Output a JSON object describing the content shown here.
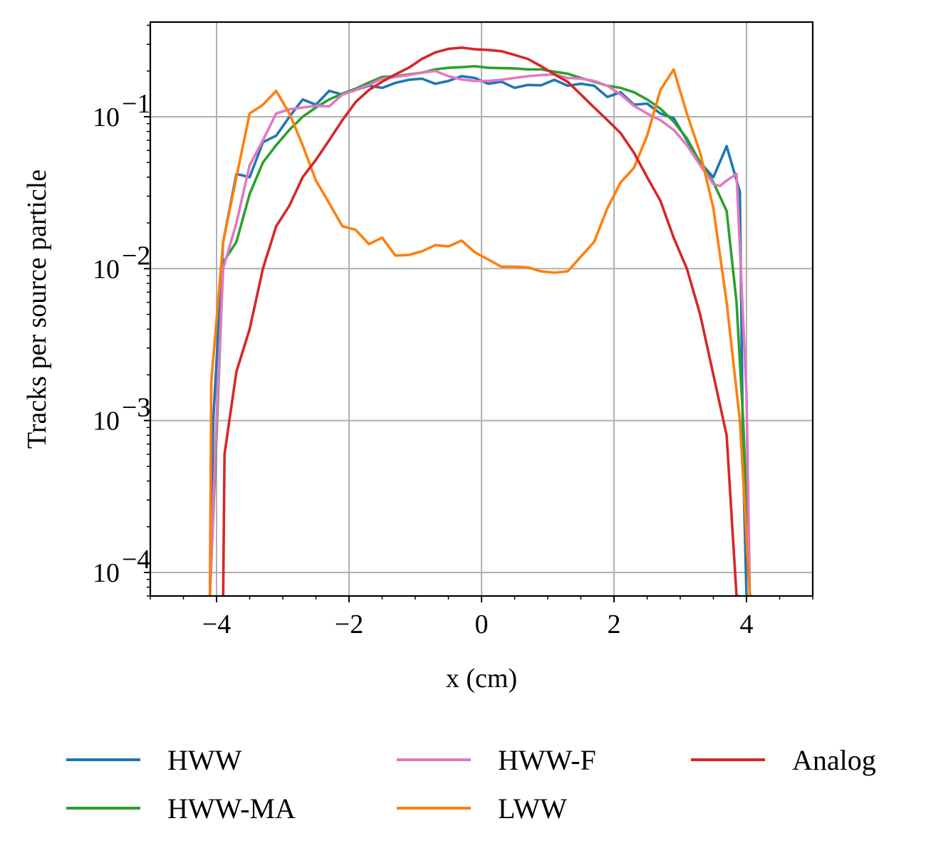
{
  "chart_data": {
    "type": "line",
    "title": "",
    "xlabel": "x (cm)",
    "ylabel": "Tracks per source particle",
    "yscale": "log",
    "xlim": [
      -5,
      5
    ],
    "ylim": [
      7e-05,
      0.42
    ],
    "grid": true,
    "legend_position": "bottom",
    "x_ticks": [
      -4,
      -2,
      0,
      2,
      4
    ],
    "x_tick_labels": [
      "−4",
      "−2",
      "0",
      "2",
      "4"
    ],
    "y_ticks": [
      0.0001,
      0.001,
      0.01,
      0.1
    ],
    "y_tick_labels": [
      {
        "base": "10",
        "exp": "−4"
      },
      {
        "base": "10",
        "exp": "−3"
      },
      {
        "base": "10",
        "exp": "−2"
      },
      {
        "base": "10",
        "exp": "−1"
      }
    ],
    "series": [
      {
        "name": "HWW",
        "color": "#1f77b4",
        "x": [
          -4.1,
          -4.05,
          -3.9,
          -3.7,
          -3.5,
          -3.3,
          -3.1,
          -2.9,
          -2.7,
          -2.5,
          -2.3,
          -2.1,
          -1.9,
          -1.7,
          -1.5,
          -1.3,
          -1.1,
          -0.9,
          -0.7,
          -0.5,
          -0.3,
          -0.1,
          0.1,
          0.3,
          0.5,
          0.7,
          0.9,
          1.1,
          1.3,
          1.5,
          1.7,
          1.9,
          2.1,
          2.3,
          2.5,
          2.7,
          2.9,
          3.1,
          3.3,
          3.5,
          3.7,
          3.9,
          3.95,
          4.0
        ],
        "y": [
          7e-05,
          0.001,
          0.015,
          0.042,
          0.04,
          0.068,
          0.075,
          0.1,
          0.13,
          0.12,
          0.148,
          0.14,
          0.15,
          0.16,
          0.155,
          0.167,
          0.175,
          0.178,
          0.165,
          0.172,
          0.185,
          0.18,
          0.165,
          0.17,
          0.155,
          0.162,
          0.161,
          0.175,
          0.16,
          0.165,
          0.16,
          0.135,
          0.145,
          0.12,
          0.122,
          0.105,
          0.098,
          0.07,
          0.05,
          0.04,
          0.064,
          0.032,
          0.0005,
          7e-05
        ]
      },
      {
        "name": "HWW-MA",
        "color": "#2ca02c",
        "x": [
          -4.1,
          -4.0,
          -3.9,
          -3.7,
          -3.5,
          -3.3,
          -3.1,
          -2.9,
          -2.7,
          -2.5,
          -2.3,
          -2.1,
          -1.9,
          -1.7,
          -1.5,
          -1.3,
          -1.1,
          -0.9,
          -0.7,
          -0.5,
          -0.3,
          -0.1,
          0.1,
          0.3,
          0.5,
          0.7,
          0.9,
          1.1,
          1.3,
          1.5,
          1.7,
          1.9,
          2.1,
          2.3,
          2.5,
          2.7,
          2.9,
          3.1,
          3.3,
          3.5,
          3.7,
          3.85,
          3.95,
          4.05
        ],
        "y": [
          7e-05,
          0.0008,
          0.011,
          0.015,
          0.031,
          0.05,
          0.065,
          0.082,
          0.1,
          0.115,
          0.13,
          0.142,
          0.153,
          0.168,
          0.183,
          0.185,
          0.19,
          0.195,
          0.205,
          0.21,
          0.212,
          0.215,
          0.21,
          0.209,
          0.208,
          0.205,
          0.205,
          0.198,
          0.192,
          0.18,
          0.17,
          0.16,
          0.155,
          0.145,
          0.13,
          0.113,
          0.093,
          0.072,
          0.05,
          0.037,
          0.024,
          0.006,
          0.001,
          7e-05
        ]
      },
      {
        "name": "HWW-F",
        "color": "#e377c2",
        "x": [
          -4.1,
          -4.0,
          -3.9,
          -3.7,
          -3.5,
          -3.3,
          -3.1,
          -2.9,
          -2.7,
          -2.5,
          -2.3,
          -2.1,
          -1.9,
          -1.7,
          -1.5,
          -1.3,
          -1.1,
          -0.9,
          -0.7,
          -0.5,
          -0.3,
          -0.1,
          0.1,
          0.3,
          0.5,
          0.7,
          0.9,
          1.1,
          1.3,
          1.5,
          1.7,
          1.9,
          2.1,
          2.3,
          2.5,
          2.7,
          2.9,
          3.1,
          3.3,
          3.5,
          3.6,
          3.7,
          3.85,
          4.0,
          4.05
        ],
        "y": [
          7e-05,
          0.001,
          0.01,
          0.02,
          0.048,
          0.07,
          0.105,
          0.112,
          0.115,
          0.118,
          0.117,
          0.14,
          0.15,
          0.162,
          0.178,
          0.183,
          0.188,
          0.195,
          0.2,
          0.185,
          0.176,
          0.172,
          0.172,
          0.175,
          0.18,
          0.185,
          0.188,
          0.19,
          0.18,
          0.178,
          0.172,
          0.16,
          0.14,
          0.118,
          0.105,
          0.095,
          0.082,
          0.065,
          0.048,
          0.036,
          0.035,
          0.038,
          0.042,
          0.0015,
          7e-05
        ]
      },
      {
        "name": "LWW",
        "color": "#ff7f0e",
        "x": [
          -4.1,
          -4.08,
          -3.9,
          -3.7,
          -3.5,
          -3.3,
          -3.1,
          -2.9,
          -2.7,
          -2.5,
          -2.3,
          -2.1,
          -1.9,
          -1.7,
          -1.5,
          -1.3,
          -1.1,
          -0.9,
          -0.7,
          -0.5,
          -0.3,
          -0.1,
          0.1,
          0.3,
          0.5,
          0.7,
          0.9,
          1.1,
          1.3,
          1.5,
          1.7,
          1.9,
          2.1,
          2.3,
          2.5,
          2.7,
          2.9,
          3.1,
          3.3,
          3.5,
          3.7,
          3.9,
          4.05,
          4.07
        ],
        "y": [
          7e-05,
          0.0018,
          0.015,
          0.04,
          0.105,
          0.12,
          0.148,
          0.105,
          0.065,
          0.038,
          0.027,
          0.019,
          0.018,
          0.0145,
          0.016,
          0.0122,
          0.0123,
          0.013,
          0.0143,
          0.014,
          0.0153,
          0.0128,
          0.0115,
          0.0103,
          0.0103,
          0.0102,
          0.0096,
          0.0094,
          0.0096,
          0.012,
          0.015,
          0.025,
          0.037,
          0.046,
          0.075,
          0.15,
          0.205,
          0.105,
          0.058,
          0.025,
          0.006,
          0.001,
          7e-05,
          7e-05
        ]
      },
      {
        "name": "Analog",
        "color": "#d62728",
        "x": [
          -3.9,
          -3.88,
          -3.7,
          -3.5,
          -3.3,
          -3.1,
          -2.9,
          -2.7,
          -2.5,
          -2.3,
          -2.1,
          -1.9,
          -1.7,
          -1.5,
          -1.3,
          -1.1,
          -0.9,
          -0.7,
          -0.5,
          -0.3,
          -0.1,
          0.1,
          0.3,
          0.5,
          0.7,
          0.9,
          1.1,
          1.3,
          1.5,
          1.7,
          1.9,
          2.1,
          2.3,
          2.5,
          2.7,
          2.9,
          3.1,
          3.3,
          3.5,
          3.7,
          3.85,
          3.87
        ],
        "y": [
          7e-05,
          0.0006,
          0.0021,
          0.004,
          0.01,
          0.019,
          0.026,
          0.04,
          0.052,
          0.07,
          0.095,
          0.125,
          0.15,
          0.17,
          0.19,
          0.21,
          0.24,
          0.265,
          0.28,
          0.285,
          0.278,
          0.275,
          0.27,
          0.255,
          0.24,
          0.215,
          0.19,
          0.17,
          0.14,
          0.115,
          0.095,
          0.078,
          0.058,
          0.04,
          0.028,
          0.016,
          0.01,
          0.005,
          0.002,
          0.0008,
          7e-05,
          7e-05
        ]
      }
    ],
    "legend_order": [
      "HWW",
      "HWW-F",
      "Analog",
      "HWW-MA",
      "LWW"
    ]
  }
}
